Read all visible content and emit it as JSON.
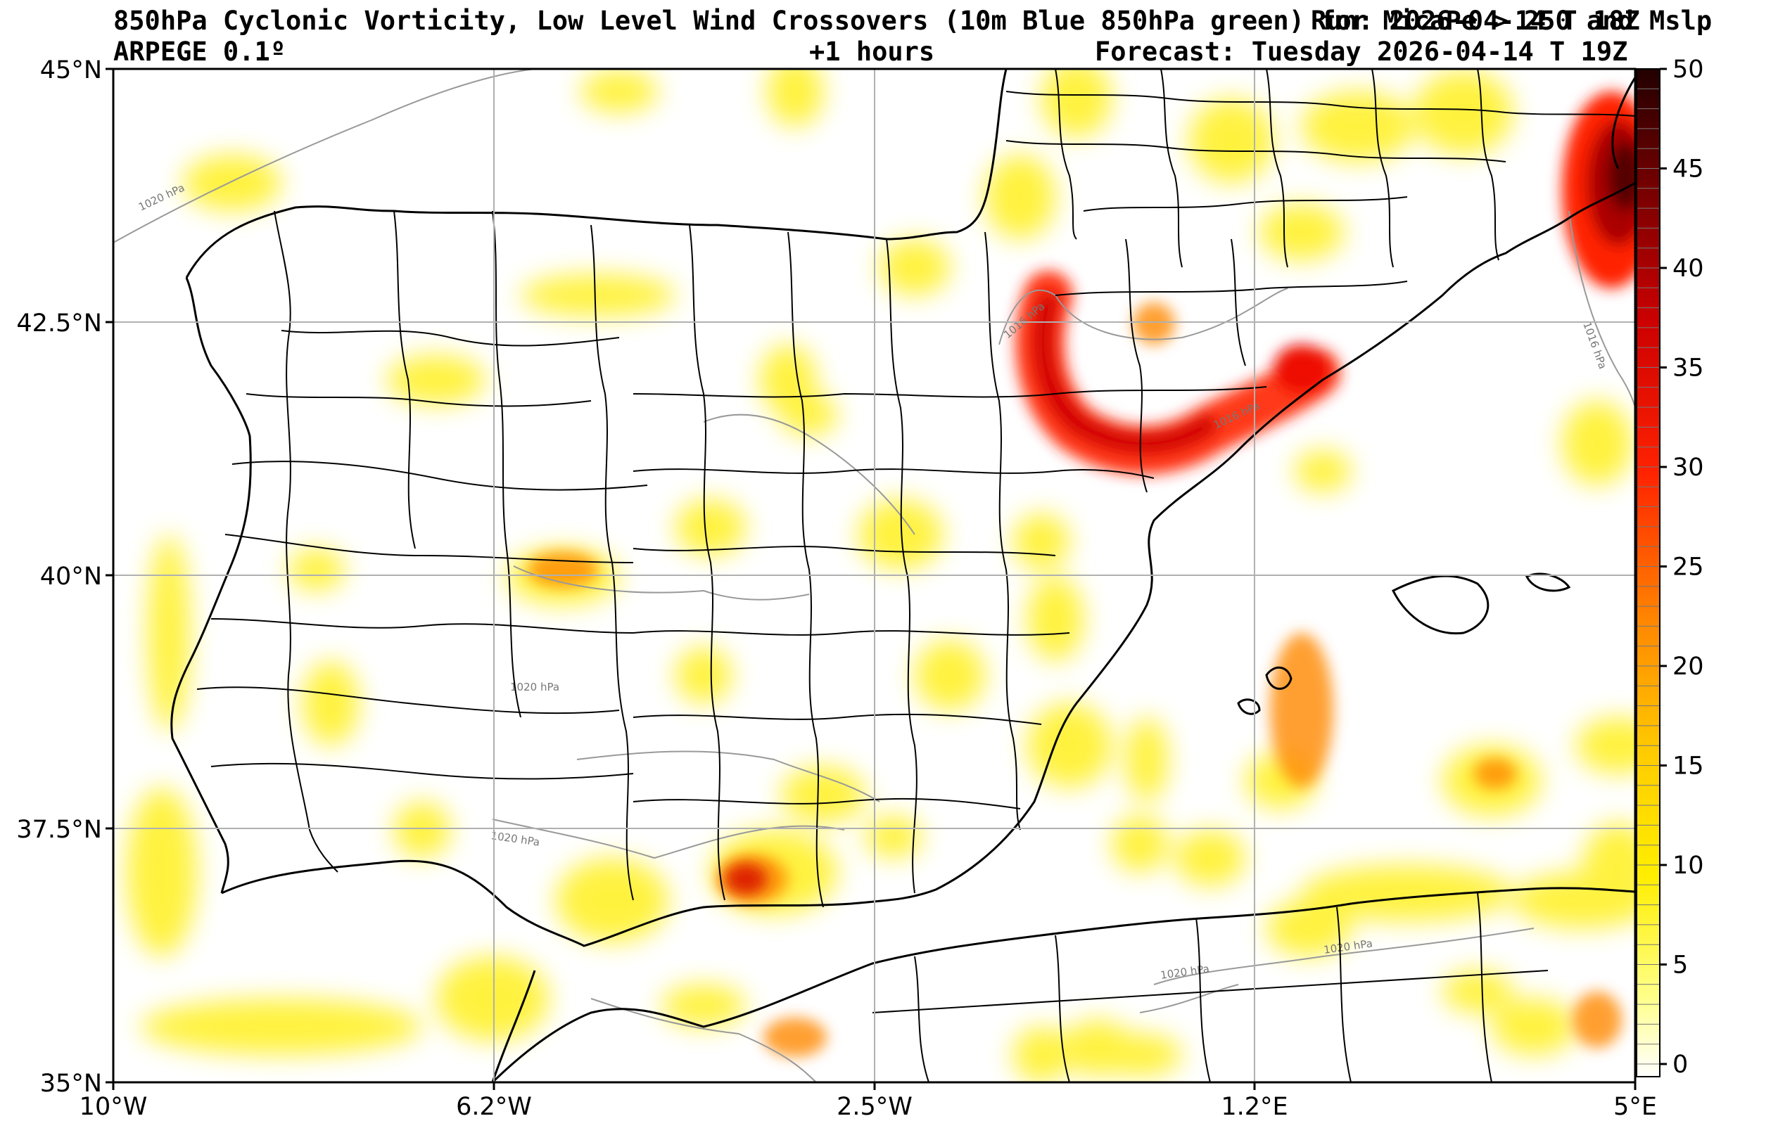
{
  "header": {
    "title_line1": "850hPa Cyclonic Vorticity, Low Level Wind Crossovers (10m Blue 850hPa green) for MicaPe > 250 and Mslp",
    "run": "Run: 2026-04-14 T 18Z",
    "model": "ARPEGE 0.1º",
    "lead": "+1 hours",
    "forecast": "Forecast: Tuesday 2026-04-14 T 19Z"
  },
  "map": {
    "lat_ticks": [
      "45°N",
      "42.5°N",
      "40°N",
      "37.5°N",
      "35°N"
    ],
    "lon_ticks": [
      "10°W",
      "6.2°W",
      "2.5°W",
      "1.2°E",
      "5°E"
    ],
    "isobar_labels": [
      "1020 hPa",
      "1020 hPa",
      "1020 hPa",
      "1016 hPa",
      "1016 hPa",
      "1016 hPa",
      "1020 hPa",
      "1020 hPa"
    ],
    "colors": {
      "yellow": "#ffee00",
      "orange": "#ff8800",
      "red": "#ee0000",
      "darkred": "#550000"
    }
  },
  "colorbar": {
    "ticks": [
      "0",
      "5",
      "10",
      "15",
      "20",
      "25",
      "30",
      "35",
      "40",
      "45",
      "50"
    ],
    "min": 0,
    "max": 50
  }
}
